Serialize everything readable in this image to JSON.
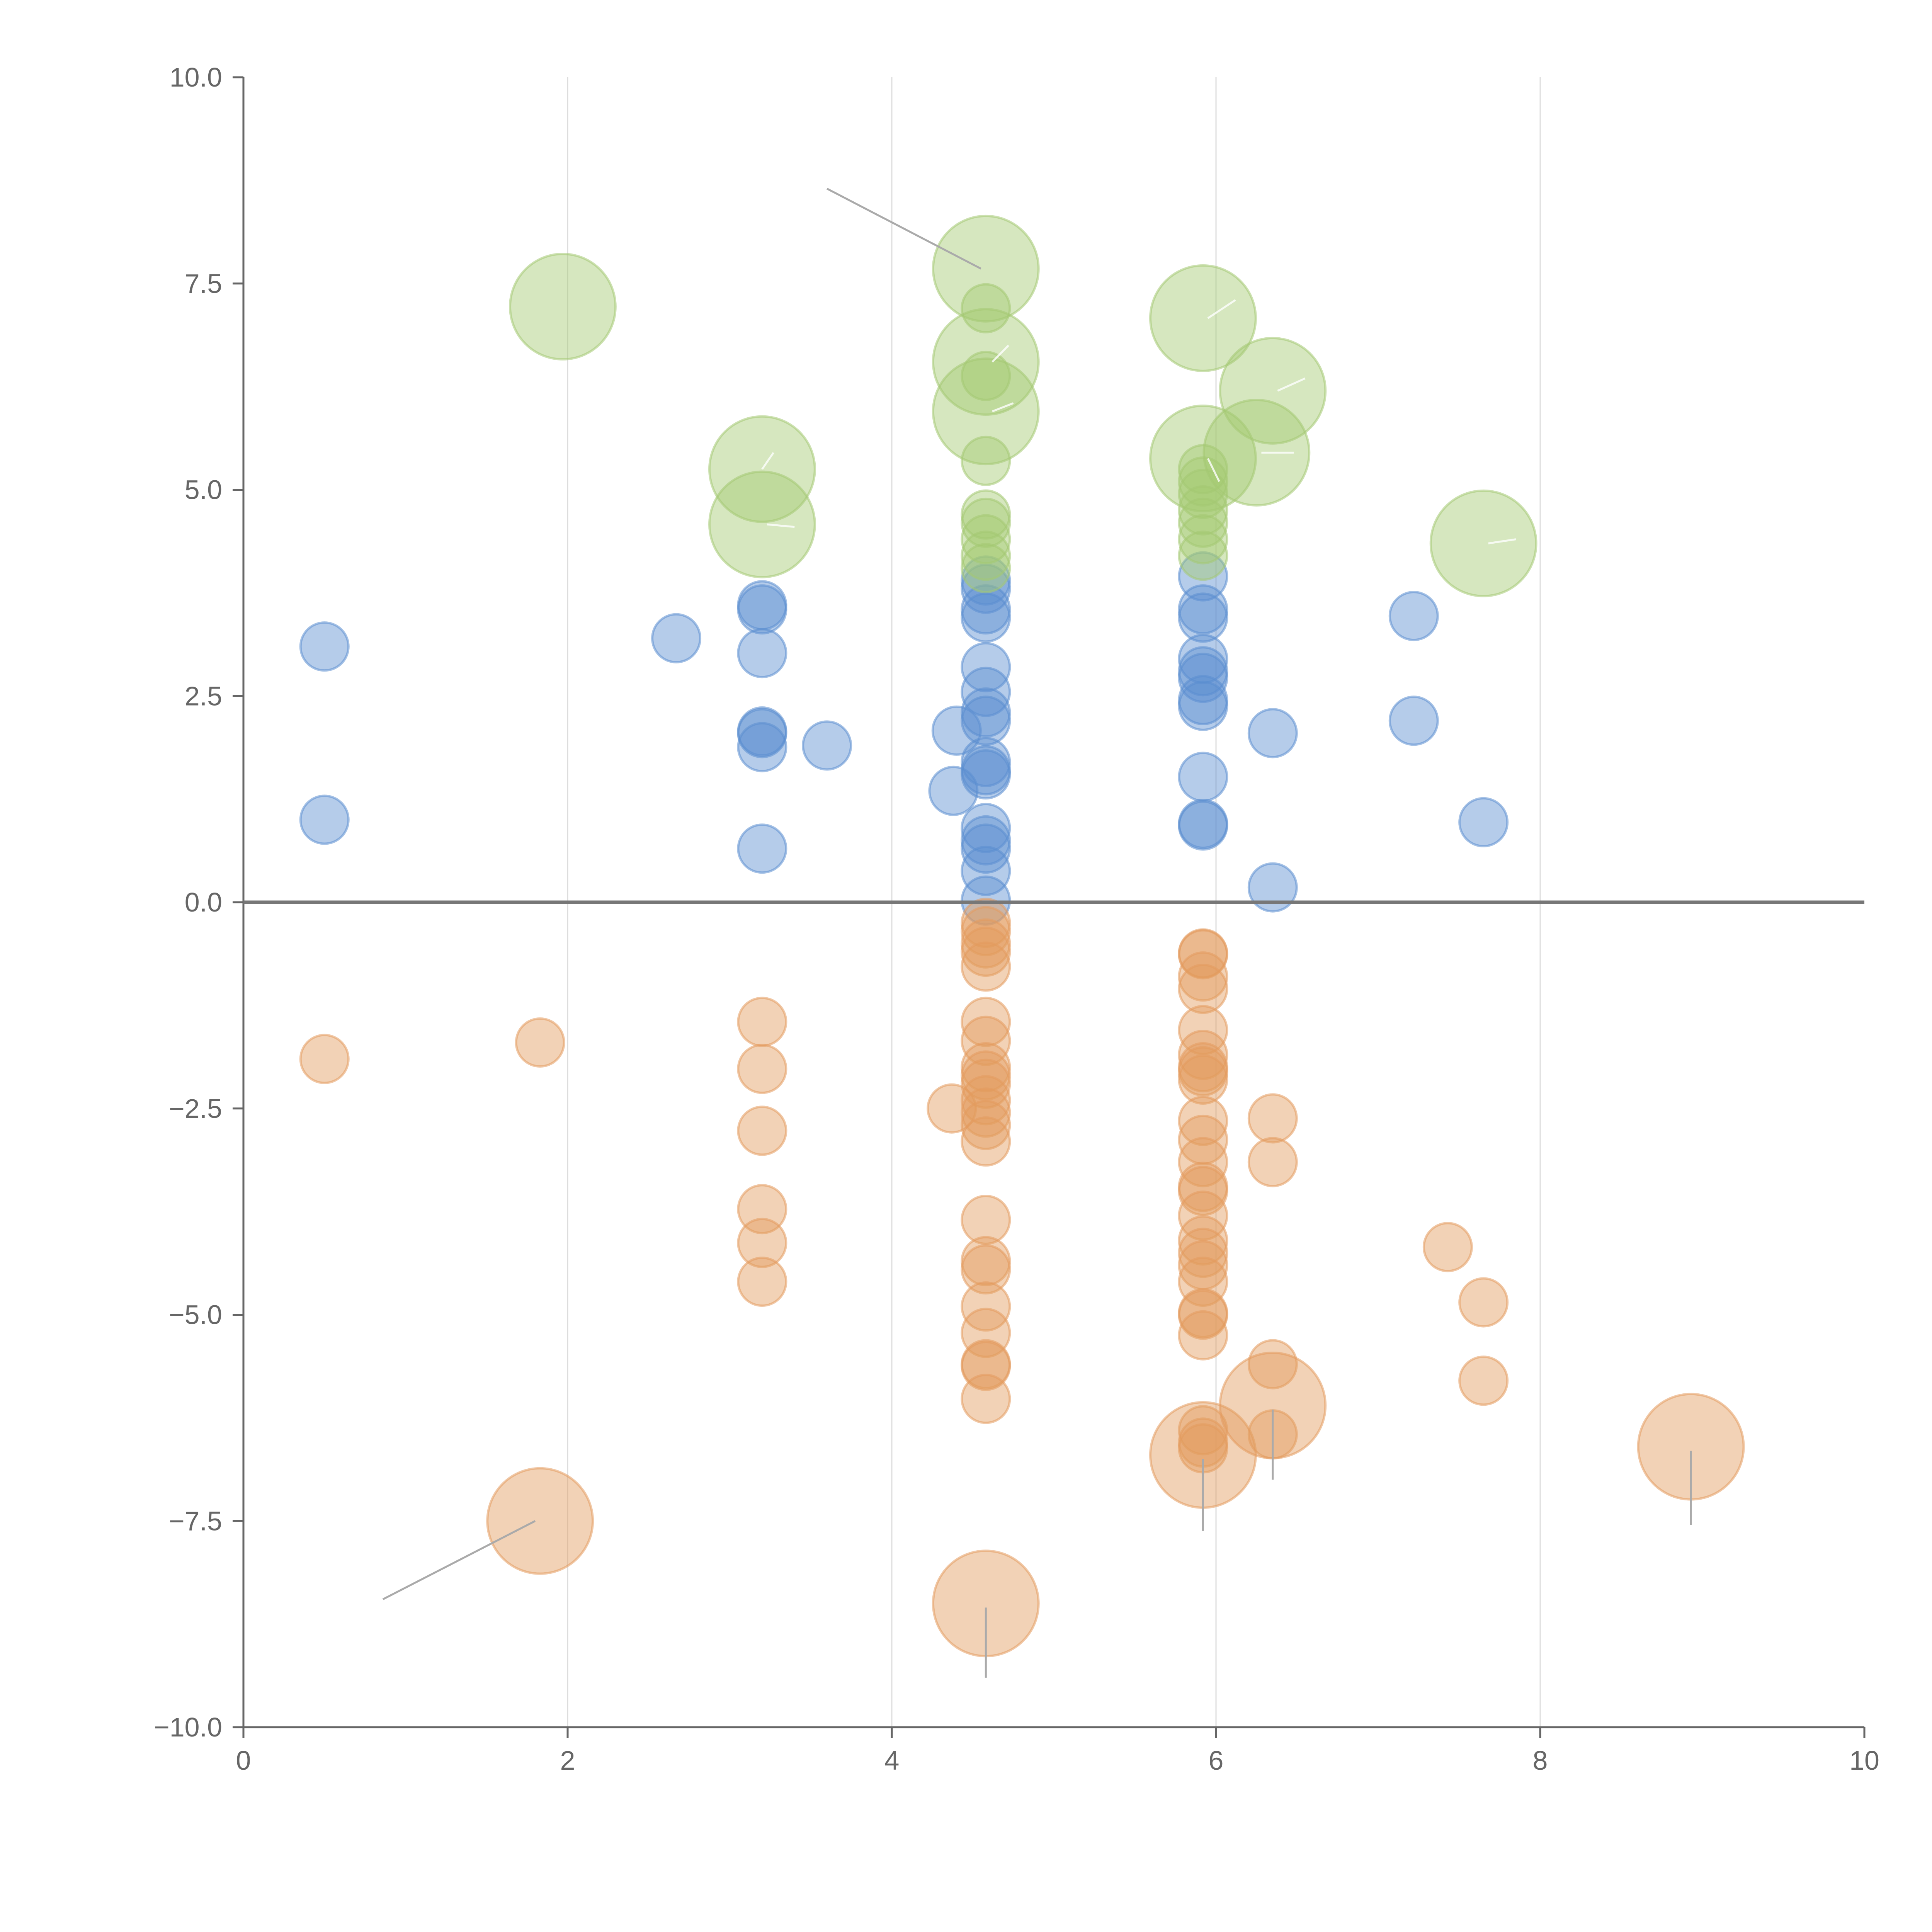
{
  "chart_data": {
    "type": "scatter",
    "title": "",
    "xlabel": "",
    "ylabel": "",
    "xlim": [
      0,
      10
    ],
    "ylim": [
      -10,
      10
    ],
    "grid": "vertical",
    "x_ticks": [
      "0",
      "2",
      "4",
      "6",
      "8",
      "10"
    ],
    "y_ticks": [
      "10.0",
      "7.5",
      "5.0",
      "2.5",
      "0.0",
      "−2.5",
      "−5.0",
      "−7.5",
      "−10.0"
    ],
    "x_tick_values": [
      0,
      2,
      4,
      6,
      8,
      10
    ],
    "y_tick_values": [
      10,
      7.5,
      5,
      2.5,
      0,
      -2.5,
      -5,
      -7.5,
      -10
    ],
    "colors": {
      "blue": "#5b8ed0",
      "orange": "#e39b5e",
      "green": "#a4c972",
      "grid": "#dddddd",
      "axis": "#666666",
      "zero": "#777777"
    },
    "size_scale": {
      "small": 1,
      "large": 2.2
    },
    "series": [
      {
        "name": "blue",
        "color": "#5b8ed0",
        "points": [
          {
            "x": 0.5,
            "y": 3.1,
            "s": 1
          },
          {
            "x": 0.5,
            "y": 1.0,
            "s": 1
          },
          {
            "x": 2.67,
            "y": 3.2,
            "s": 1
          },
          {
            "x": 3.2,
            "y": 3.6,
            "s": 1
          },
          {
            "x": 3.2,
            "y": 3.55,
            "s": 1
          },
          {
            "x": 3.2,
            "y": 3.02,
            "s": 1
          },
          {
            "x": 3.2,
            "y": 2.07,
            "s": 1
          },
          {
            "x": 3.2,
            "y": 2.05,
            "s": 1
          },
          {
            "x": 3.2,
            "y": 1.88,
            "s": 1
          },
          {
            "x": 3.2,
            "y": 0.65,
            "s": 1
          },
          {
            "x": 3.6,
            "y": 1.9,
            "s": 1
          },
          {
            "x": 4.4,
            "y": 2.08,
            "s": 1
          },
          {
            "x": 4.38,
            "y": 1.35,
            "s": 1
          },
          {
            "x": 4.58,
            "y": 3.9,
            "s": 1
          },
          {
            "x": 4.58,
            "y": 3.8,
            "s": 1
          },
          {
            "x": 4.58,
            "y": 3.55,
            "s": 1
          },
          {
            "x": 4.58,
            "y": 3.45,
            "s": 1
          },
          {
            "x": 4.58,
            "y": 2.85,
            "s": 1
          },
          {
            "x": 4.58,
            "y": 2.55,
            "s": 1
          },
          {
            "x": 4.58,
            "y": 2.3,
            "s": 1
          },
          {
            "x": 4.58,
            "y": 2.2,
            "s": 1
          },
          {
            "x": 4.58,
            "y": 1.7,
            "s": 1
          },
          {
            "x": 4.58,
            "y": 1.6,
            "s": 1
          },
          {
            "x": 4.58,
            "y": 1.55,
            "s": 1
          },
          {
            "x": 4.58,
            "y": 0.9,
            "s": 1
          },
          {
            "x": 4.58,
            "y": 0.75,
            "s": 1
          },
          {
            "x": 4.58,
            "y": 0.65,
            "s": 1
          },
          {
            "x": 4.58,
            "y": 0.38,
            "s": 1
          },
          {
            "x": 4.58,
            "y": 0.02,
            "s": 1
          },
          {
            "x": 5.92,
            "y": 3.95,
            "s": 1
          },
          {
            "x": 5.92,
            "y": 3.55,
            "s": 1
          },
          {
            "x": 5.92,
            "y": 3.45,
            "s": 1
          },
          {
            "x": 5.92,
            "y": 2.95,
            "s": 1
          },
          {
            "x": 5.92,
            "y": 2.8,
            "s": 1
          },
          {
            "x": 5.92,
            "y": 2.72,
            "s": 1
          },
          {
            "x": 5.92,
            "y": 2.45,
            "s": 1
          },
          {
            "x": 5.92,
            "y": 2.38,
            "s": 1
          },
          {
            "x": 5.92,
            "y": 1.52,
            "s": 1
          },
          {
            "x": 5.92,
            "y": 0.95,
            "s": 1
          },
          {
            "x": 5.92,
            "y": 0.93,
            "s": 1
          },
          {
            "x": 6.35,
            "y": 2.05,
            "s": 1
          },
          {
            "x": 6.35,
            "y": 0.18,
            "s": 1
          },
          {
            "x": 7.22,
            "y": 3.47,
            "s": 1
          },
          {
            "x": 7.22,
            "y": 2.2,
            "s": 1
          },
          {
            "x": 7.65,
            "y": 0.97,
            "s": 1
          }
        ]
      },
      {
        "name": "orange",
        "color": "#e39b5e",
        "points": [
          {
            "x": 0.5,
            "y": -1.9,
            "s": 1
          },
          {
            "x": 1.83,
            "y": -1.7,
            "s": 1
          },
          {
            "x": 1.83,
            "y": -7.5,
            "s": 2.2
          },
          {
            "x": 3.2,
            "y": -1.45,
            "s": 1
          },
          {
            "x": 3.2,
            "y": -2.02,
            "s": 1
          },
          {
            "x": 3.2,
            "y": -2.77,
            "s": 1
          },
          {
            "x": 3.2,
            "y": -3.72,
            "s": 1
          },
          {
            "x": 3.2,
            "y": -4.13,
            "s": 1
          },
          {
            "x": 3.2,
            "y": -4.6,
            "s": 1
          },
          {
            "x": 4.37,
            "y": -2.5,
            "s": 1
          },
          {
            "x": 4.58,
            "y": -0.25,
            "s": 1
          },
          {
            "x": 4.58,
            "y": -0.35,
            "s": 1
          },
          {
            "x": 4.58,
            "y": -0.5,
            "s": 1
          },
          {
            "x": 4.58,
            "y": -0.6,
            "s": 1
          },
          {
            "x": 4.58,
            "y": -0.78,
            "s": 1
          },
          {
            "x": 4.58,
            "y": -1.45,
            "s": 1
          },
          {
            "x": 4.58,
            "y": -1.68,
            "s": 1
          },
          {
            "x": 4.58,
            "y": -2.0,
            "s": 1
          },
          {
            "x": 4.58,
            "y": -2.1,
            "s": 1
          },
          {
            "x": 4.58,
            "y": -2.2,
            "s": 1
          },
          {
            "x": 4.58,
            "y": -2.4,
            "s": 1
          },
          {
            "x": 4.58,
            "y": -2.55,
            "s": 1
          },
          {
            "x": 4.58,
            "y": -2.7,
            "s": 1
          },
          {
            "x": 4.58,
            "y": -2.9,
            "s": 1
          },
          {
            "x": 4.58,
            "y": -3.85,
            "s": 1
          },
          {
            "x": 4.58,
            "y": -4.35,
            "s": 1
          },
          {
            "x": 4.58,
            "y": -4.45,
            "s": 1
          },
          {
            "x": 4.58,
            "y": -4.9,
            "s": 1
          },
          {
            "x": 4.58,
            "y": -5.22,
            "s": 1
          },
          {
            "x": 4.58,
            "y": -5.6,
            "s": 1
          },
          {
            "x": 4.58,
            "y": -5.62,
            "s": 1
          },
          {
            "x": 4.58,
            "y": -6.02,
            "s": 1
          },
          {
            "x": 4.58,
            "y": -8.5,
            "s": 2.2
          },
          {
            "x": 5.92,
            "y": -0.62,
            "s": 1
          },
          {
            "x": 5.92,
            "y": -0.63,
            "s": 1
          },
          {
            "x": 5.92,
            "y": -0.9,
            "s": 1
          },
          {
            "x": 5.92,
            "y": -1.05,
            "s": 1
          },
          {
            "x": 5.92,
            "y": -1.55,
            "s": 1
          },
          {
            "x": 5.92,
            "y": -1.85,
            "s": 1
          },
          {
            "x": 5.92,
            "y": -2.0,
            "s": 1
          },
          {
            "x": 5.92,
            "y": -2.05,
            "s": 1
          },
          {
            "x": 5.92,
            "y": -2.15,
            "s": 1
          },
          {
            "x": 5.92,
            "y": -2.65,
            "s": 1
          },
          {
            "x": 5.92,
            "y": -2.88,
            "s": 1
          },
          {
            "x": 5.92,
            "y": -3.15,
            "s": 1
          },
          {
            "x": 5.92,
            "y": -3.45,
            "s": 1
          },
          {
            "x": 5.92,
            "y": -3.5,
            "s": 1
          },
          {
            "x": 5.92,
            "y": -3.8,
            "s": 1
          },
          {
            "x": 5.92,
            "y": -4.1,
            "s": 1
          },
          {
            "x": 5.92,
            "y": -4.25,
            "s": 1
          },
          {
            "x": 5.92,
            "y": -4.4,
            "s": 1
          },
          {
            "x": 5.92,
            "y": -4.6,
            "s": 1
          },
          {
            "x": 5.92,
            "y": -4.98,
            "s": 1
          },
          {
            "x": 5.92,
            "y": -5.0,
            "s": 1
          },
          {
            "x": 5.92,
            "y": -5.25,
            "s": 1
          },
          {
            "x": 5.92,
            "y": -6.4,
            "s": 1
          },
          {
            "x": 5.92,
            "y": -6.55,
            "s": 1
          },
          {
            "x": 5.92,
            "y": -6.62,
            "s": 1
          },
          {
            "x": 5.92,
            "y": -6.7,
            "s": 2.2
          },
          {
            "x": 6.35,
            "y": -2.62,
            "s": 1
          },
          {
            "x": 6.35,
            "y": -3.15,
            "s": 1
          },
          {
            "x": 6.35,
            "y": -5.6,
            "s": 1
          },
          {
            "x": 6.35,
            "y": -6.45,
            "s": 1
          },
          {
            "x": 6.35,
            "y": -6.1,
            "s": 2.2
          },
          {
            "x": 7.43,
            "y": -4.18,
            "s": 1
          },
          {
            "x": 7.65,
            "y": -4.85,
            "s": 1
          },
          {
            "x": 7.65,
            "y": -5.8,
            "s": 1
          },
          {
            "x": 8.93,
            "y": -6.6,
            "s": 2.2
          }
        ]
      },
      {
        "name": "green",
        "color": "#a4c972",
        "points": [
          {
            "x": 1.97,
            "y": 7.22,
            "s": 2.2
          },
          {
            "x": 3.2,
            "y": 5.25,
            "s": 2.2
          },
          {
            "x": 3.2,
            "y": 4.58,
            "s": 2.2
          },
          {
            "x": 4.58,
            "y": 7.68,
            "s": 2.2
          },
          {
            "x": 4.58,
            "y": 7.2,
            "s": 1
          },
          {
            "x": 4.58,
            "y": 6.55,
            "s": 2.2
          },
          {
            "x": 4.58,
            "y": 6.38,
            "s": 1
          },
          {
            "x": 4.58,
            "y": 5.95,
            "s": 2.2
          },
          {
            "x": 4.58,
            "y": 5.35,
            "s": 1
          },
          {
            "x": 4.58,
            "y": 4.7,
            "s": 1
          },
          {
            "x": 4.58,
            "y": 4.6,
            "s": 1
          },
          {
            "x": 4.58,
            "y": 4.4,
            "s": 1
          },
          {
            "x": 4.58,
            "y": 4.2,
            "s": 1
          },
          {
            "x": 4.58,
            "y": 4.05,
            "s": 1
          },
          {
            "x": 5.92,
            "y": 7.08,
            "s": 2.2
          },
          {
            "x": 5.92,
            "y": 5.38,
            "s": 2.2
          },
          {
            "x": 5.92,
            "y": 5.25,
            "s": 1
          },
          {
            "x": 5.92,
            "y": 5.1,
            "s": 1
          },
          {
            "x": 5.92,
            "y": 4.95,
            "s": 1
          },
          {
            "x": 5.92,
            "y": 4.75,
            "s": 1
          },
          {
            "x": 5.92,
            "y": 4.6,
            "s": 1
          },
          {
            "x": 5.92,
            "y": 4.4,
            "s": 1
          },
          {
            "x": 5.92,
            "y": 4.2,
            "s": 1
          },
          {
            "x": 6.25,
            "y": 5.45,
            "s": 2.2
          },
          {
            "x": 6.35,
            "y": 6.2,
            "s": 2.2
          },
          {
            "x": 7.65,
            "y": 4.35,
            "s": 2.2
          }
        ]
      }
    ],
    "annotation_leaders": [
      {
        "x1": 3.6,
        "y1": 8.65,
        "x2": 4.55,
        "y2": 7.68,
        "color": "#aaaaaa"
      },
      {
        "x1": 0.86,
        "y1": -8.45,
        "x2": 1.8,
        "y2": -7.5,
        "color": "#aaaaaa"
      },
      {
        "x1": 4.58,
        "y1": -9.4,
        "x2": 4.58,
        "y2": -8.55,
        "color": "#aaaaaa"
      },
      {
        "x1": 5.92,
        "y1": -7.62,
        "x2": 5.92,
        "y2": -6.75,
        "color": "#aaaaaa"
      },
      {
        "x1": 6.35,
        "y1": -7.0,
        "x2": 6.35,
        "y2": -6.15,
        "color": "#aaaaaa"
      },
      {
        "x1": 8.93,
        "y1": -7.55,
        "x2": 8.93,
        "y2": -6.65,
        "color": "#aaaaaa"
      },
      {
        "x1": 3.27,
        "y1": 5.45,
        "x2": 3.2,
        "y2": 5.25,
        "color": "#ffffff"
      },
      {
        "x1": 3.4,
        "y1": 4.55,
        "x2": 3.23,
        "y2": 4.58,
        "color": "#ffffff"
      },
      {
        "x1": 4.72,
        "y1": 6.75,
        "x2": 4.62,
        "y2": 6.55,
        "color": "#ffffff"
      },
      {
        "x1": 4.75,
        "y1": 6.05,
        "x2": 4.62,
        "y2": 5.95,
        "color": "#ffffff"
      },
      {
        "x1": 6.12,
        "y1": 7.3,
        "x2": 5.95,
        "y2": 7.08,
        "color": "#ffffff"
      },
      {
        "x1": 6.02,
        "y1": 5.1,
        "x2": 5.95,
        "y2": 5.38,
        "color": "#ffffff"
      },
      {
        "x1": 6.48,
        "y1": 5.45,
        "x2": 6.28,
        "y2": 5.45,
        "color": "#ffffff"
      },
      {
        "x1": 6.55,
        "y1": 6.35,
        "x2": 6.38,
        "y2": 6.2,
        "color": "#ffffff"
      },
      {
        "x1": 7.85,
        "y1": 4.4,
        "x2": 7.68,
        "y2": 4.35,
        "color": "#ffffff"
      }
    ]
  }
}
